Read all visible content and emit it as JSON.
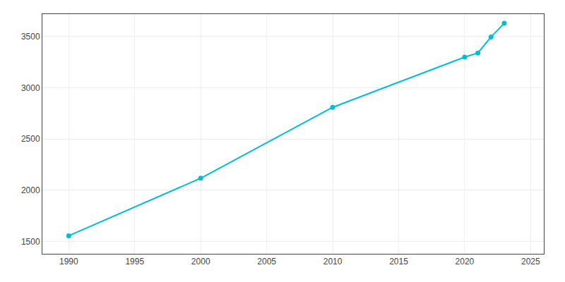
{
  "chart_data": {
    "type": "line",
    "x": [
      1990,
      2000,
      2010,
      2020,
      2021,
      2022,
      2023
    ],
    "values": [
      1556,
      2118,
      2810,
      3300,
      3340,
      3497,
      3630
    ],
    "color": "#00bcd4",
    "marker": "circle",
    "xlim": [
      1988,
      2026
    ],
    "ylim": [
      1380,
      3720
    ],
    "xticks": [
      1990,
      1995,
      2000,
      2005,
      2010,
      2015,
      2020,
      2025
    ],
    "yticks": [
      1500,
      2000,
      2500,
      3000,
      3500
    ],
    "grid": true
  }
}
